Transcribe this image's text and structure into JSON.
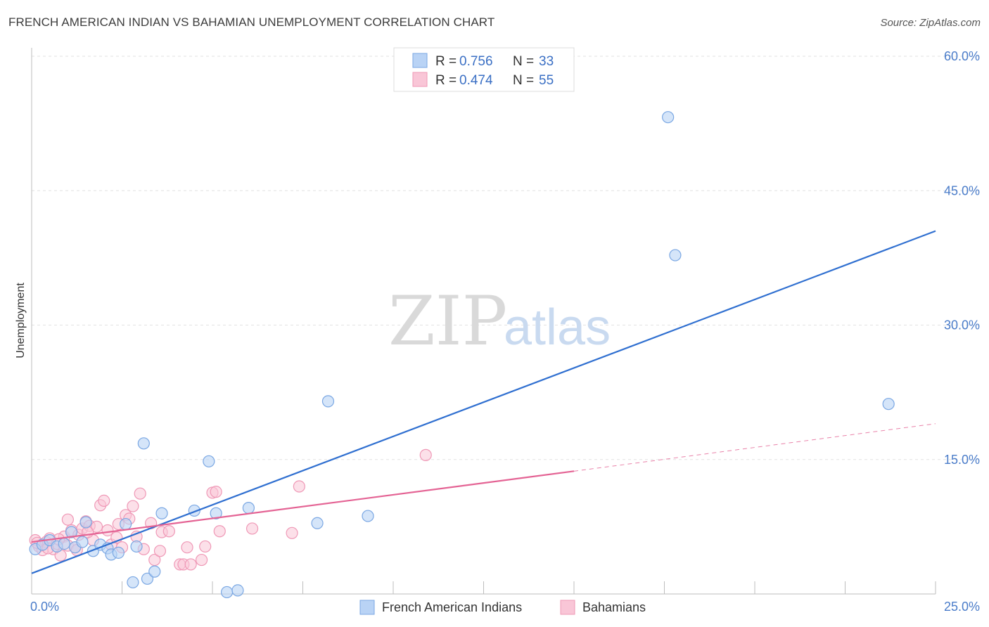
{
  "header": {
    "title": "FRENCH AMERICAN INDIAN VS BAHAMIAN UNEMPLOYMENT CORRELATION CHART",
    "source": "Source: ZipAtlas.com"
  },
  "watermark": {
    "zip": "ZIP",
    "atlas": "atlas"
  },
  "legend": {
    "r_label": "R =",
    "n_label": "N =",
    "series": [
      {
        "r": "0.756",
        "n": "33"
      },
      {
        "r": "0.474",
        "n": "55"
      }
    ]
  },
  "colors": {
    "blue_fill": "#b9d3f5",
    "blue_stroke": "#7aa7e3",
    "blue_line": "#2f6fd0",
    "pink_fill": "#f9c6d7",
    "pink_stroke": "#ef98b6",
    "pink_line": "#e46394"
  },
  "chart_data": {
    "type": "scatter",
    "title": "FRENCH AMERICAN INDIAN VS BAHAMIAN UNEMPLOYMENT CORRELATION CHART",
    "xlabel": "",
    "ylabel": "Unemployment",
    "xlim": [
      0,
      25
    ],
    "ylim": [
      0,
      60
    ],
    "x_tick_labels": [
      "0.0%",
      "25.0%"
    ],
    "y_ticks": [
      15,
      30,
      45,
      60
    ],
    "y_tick_labels": [
      "15.0%",
      "30.0%",
      "45.0%",
      "60.0%"
    ],
    "grid": true,
    "series": [
      {
        "name": "French American Indians",
        "r": 0.756,
        "n": 33,
        "trend": {
          "x": [
            0,
            25
          ],
          "y": [
            2.3,
            40.5
          ]
        },
        "points": [
          [
            0.1,
            5.0
          ],
          [
            0.3,
            5.5
          ],
          [
            0.5,
            6.0
          ],
          [
            0.7,
            5.3
          ],
          [
            0.9,
            5.6
          ],
          [
            1.1,
            6.9
          ],
          [
            1.2,
            5.2
          ],
          [
            1.4,
            5.8
          ],
          [
            1.5,
            8.0
          ],
          [
            1.7,
            4.8
          ],
          [
            1.9,
            5.5
          ],
          [
            2.1,
            5.1
          ],
          [
            2.2,
            4.4
          ],
          [
            2.4,
            4.6
          ],
          [
            2.6,
            7.8
          ],
          [
            2.8,
            1.3
          ],
          [
            2.9,
            5.3
          ],
          [
            3.1,
            16.8
          ],
          [
            3.2,
            1.7
          ],
          [
            3.4,
            2.5
          ],
          [
            3.6,
            9.0
          ],
          [
            4.5,
            9.3
          ],
          [
            4.9,
            14.8
          ],
          [
            5.1,
            9.0
          ],
          [
            5.4,
            0.2
          ],
          [
            5.7,
            0.4
          ],
          [
            6.0,
            9.6
          ],
          [
            7.9,
            7.9
          ],
          [
            8.2,
            21.5
          ],
          [
            9.3,
            8.7
          ],
          [
            17.6,
            53.2
          ],
          [
            17.8,
            37.8
          ],
          [
            23.7,
            21.2
          ]
        ]
      },
      {
        "name": "Bahamians",
        "r": 0.474,
        "n": 55,
        "trend": {
          "x": [
            0,
            15
          ],
          "y": [
            5.8,
            13.7
          ]
        },
        "trend_dashed": {
          "x": [
            15,
            25
          ],
          "y": [
            13.7,
            19.0
          ]
        },
        "points": [
          [
            0.1,
            6.0
          ],
          [
            0.2,
            5.3
          ],
          [
            0.3,
            4.9
          ],
          [
            0.4,
            5.8
          ],
          [
            0.5,
            6.2
          ],
          [
            0.6,
            5.0
          ],
          [
            0.7,
            5.6
          ],
          [
            0.8,
            4.3
          ],
          [
            0.9,
            6.4
          ],
          [
            1.0,
            5.4
          ],
          [
            1.0,
            8.3
          ],
          [
            1.1,
            7.1
          ],
          [
            1.2,
            5.2
          ],
          [
            1.3,
            6.6
          ],
          [
            1.4,
            7.3
          ],
          [
            1.5,
            8.1
          ],
          [
            1.6,
            7.6
          ],
          [
            1.7,
            6.0
          ],
          [
            1.8,
            7.5
          ],
          [
            1.9,
            9.9
          ],
          [
            2.0,
            10.4
          ],
          [
            2.1,
            7.1
          ],
          [
            2.2,
            5.5
          ],
          [
            2.4,
            7.8
          ],
          [
            2.5,
            5.2
          ],
          [
            2.6,
            8.8
          ],
          [
            2.7,
            8.4
          ],
          [
            2.8,
            9.8
          ],
          [
            2.9,
            6.4
          ],
          [
            3.0,
            11.2
          ],
          [
            3.1,
            5.0
          ],
          [
            3.3,
            7.9
          ],
          [
            3.4,
            3.8
          ],
          [
            3.6,
            6.9
          ],
          [
            3.8,
            7.0
          ],
          [
            4.1,
            3.3
          ],
          [
            4.2,
            3.3
          ],
          [
            4.3,
            5.2
          ],
          [
            4.4,
            3.3
          ],
          [
            4.7,
            3.8
          ],
          [
            4.8,
            5.3
          ],
          [
            5.0,
            11.3
          ],
          [
            5.1,
            11.4
          ],
          [
            5.2,
            7.0
          ],
          [
            6.1,
            7.3
          ],
          [
            7.2,
            6.8
          ],
          [
            7.4,
            12.0
          ],
          [
            10.9,
            15.5
          ],
          [
            0.15,
            5.7
          ],
          [
            0.45,
            5.1
          ],
          [
            0.75,
            6.1
          ],
          [
            1.25,
            4.9
          ],
          [
            1.55,
            6.9
          ],
          [
            2.35,
            6.3
          ],
          [
            3.55,
            4.8
          ]
        ]
      }
    ]
  }
}
